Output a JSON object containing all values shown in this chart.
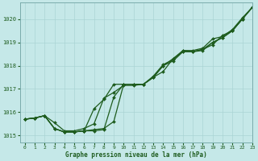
{
  "xlabel": "Graphe pression niveau de la mer (hPa)",
  "xlim": [
    -0.5,
    23
  ],
  "ylim": [
    1014.7,
    1020.7
  ],
  "yticks": [
    1015,
    1016,
    1017,
    1018,
    1019,
    1020
  ],
  "xticks": [
    0,
    1,
    2,
    3,
    4,
    5,
    6,
    7,
    8,
    9,
    10,
    11,
    12,
    13,
    14,
    15,
    16,
    17,
    18,
    19,
    20,
    21,
    22,
    23
  ],
  "bg_color": "#c5e8e8",
  "grid_color": "#aad4d4",
  "line_color": "#1e5c1e",
  "markersize": 2.0,
  "linewidth": 0.9,
  "lines": [
    [
      1015.7,
      1015.75,
      1015.85,
      1015.55,
      1015.2,
      1015.2,
      1015.3,
      1015.5,
      1016.6,
      1016.85,
      1017.15,
      1017.15,
      1017.2,
      1017.55,
      1018.05,
      1018.25,
      1018.65,
      1018.65,
      1018.75,
      1019.15,
      1019.25,
      1019.55,
      1020.05,
      1020.5
    ],
    [
      1015.7,
      1015.75,
      1015.85,
      1015.3,
      1015.15,
      1015.15,
      1015.2,
      1015.25,
      1015.3,
      1015.6,
      1017.2,
      1017.2,
      1017.2,
      1017.5,
      1017.75,
      1018.3,
      1018.65,
      1018.6,
      1018.7,
      1018.9,
      1019.3,
      1019.5,
      1020.0,
      1020.5
    ],
    [
      1015.7,
      1015.75,
      1015.85,
      1015.3,
      1015.15,
      1015.15,
      1015.2,
      1015.2,
      1015.25,
      1016.65,
      1017.2,
      1017.2,
      1017.2,
      1017.5,
      1018.0,
      1018.3,
      1018.6,
      1018.6,
      1018.65,
      1019.0,
      1019.2,
      1019.5,
      1020.0,
      1020.5
    ],
    [
      1015.7,
      1015.75,
      1015.85,
      1015.3,
      1015.15,
      1015.15,
      1015.2,
      1016.15,
      1016.55,
      1017.2,
      1017.2,
      1017.2,
      1017.2,
      1017.5,
      1018.0,
      1018.2,
      1018.6,
      1018.6,
      1018.7,
      1019.0,
      1019.2,
      1019.5,
      1020.0,
      1020.5
    ]
  ]
}
